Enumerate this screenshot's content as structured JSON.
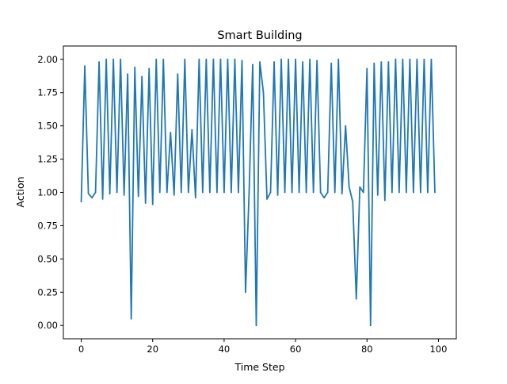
{
  "chart_data": {
    "type": "line",
    "title": "Smart Building",
    "xlabel": "Time Step",
    "ylabel": "Action",
    "xlim": [
      -5,
      105
    ],
    "ylim": [
      -0.1,
      2.1
    ],
    "xticks": [
      0,
      20,
      40,
      60,
      80,
      100
    ],
    "xtick_labels": [
      "0",
      "20",
      "40",
      "60",
      "80",
      "100"
    ],
    "yticks": [
      0.0,
      0.25,
      0.5,
      0.75,
      1.0,
      1.25,
      1.5,
      1.75,
      2.0
    ],
    "ytick_labels": [
      "0.00",
      "0.25",
      "0.50",
      "0.75",
      "1.00",
      "1.25",
      "1.50",
      "1.75",
      "2.00"
    ],
    "grid": false,
    "series": [
      {
        "color": "#1f77b4",
        "x": [
          0,
          1,
          2,
          3,
          4,
          5,
          6,
          7,
          8,
          9,
          10,
          11,
          12,
          13,
          14,
          15,
          16,
          17,
          18,
          19,
          20,
          21,
          22,
          23,
          24,
          25,
          26,
          27,
          28,
          29,
          30,
          31,
          32,
          33,
          34,
          35,
          36,
          37,
          38,
          39,
          40,
          41,
          42,
          43,
          44,
          45,
          46,
          47,
          48,
          49,
          50,
          51,
          52,
          53,
          54,
          55,
          56,
          57,
          58,
          59,
          60,
          61,
          62,
          63,
          64,
          65,
          66,
          67,
          68,
          69,
          70,
          71,
          72,
          73,
          74,
          75,
          76,
          77,
          78,
          79,
          80,
          81,
          82,
          83,
          84,
          85,
          86,
          87,
          88,
          89,
          90,
          91,
          92,
          93,
          94,
          95,
          96,
          97,
          98,
          99
        ],
        "values": [
          0.93,
          1.95,
          0.99,
          0.96,
          1.0,
          1.98,
          0.95,
          2.0,
          0.99,
          2.0,
          1.0,
          2.0,
          0.98,
          1.89,
          0.05,
          1.94,
          0.97,
          1.87,
          0.92,
          1.93,
          0.91,
          2.0,
          1.0,
          2.0,
          1.0,
          1.45,
          0.98,
          1.89,
          1.0,
          2.0,
          1.0,
          1.47,
          0.96,
          2.0,
          1.0,
          2.0,
          1.0,
          2.0,
          1.0,
          2.0,
          1.0,
          2.0,
          1.0,
          2.0,
          1.0,
          1.99,
          0.25,
          1.0,
          1.96,
          0.0,
          1.98,
          1.75,
          0.95,
          1.0,
          1.98,
          0.98,
          2.0,
          1.0,
          2.0,
          1.0,
          2.0,
          1.0,
          1.98,
          1.0,
          2.0,
          1.0,
          1.99,
          1.0,
          0.96,
          1.0,
          1.97,
          1.0,
          2.0,
          0.99,
          1.5,
          1.04,
          0.93,
          0.2,
          1.04,
          1.0,
          1.93,
          0.0,
          1.97,
          0.98,
          1.98,
          0.94,
          1.98,
          1.0,
          2.0,
          1.0,
          2.0,
          1.0,
          2.0,
          1.0,
          2.0,
          1.0,
          2.0,
          1.0,
          2.0,
          1.0
        ]
      }
    ]
  }
}
